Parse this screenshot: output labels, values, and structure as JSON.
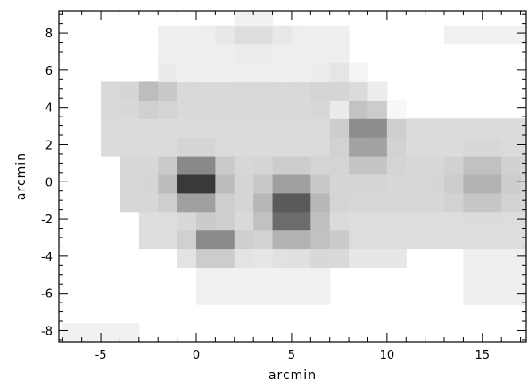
{
  "chart_data": {
    "type": "heatmap",
    "title": "",
    "xlabel": "arcmin",
    "ylabel": "arcmin",
    "xlim": [
      -7.2,
      17.3
    ],
    "ylim": [
      -8.6,
      9.2
    ],
    "x_ticks": [
      -5,
      0,
      5,
      10,
      15
    ],
    "y_ticks": [
      -8,
      -6,
      -4,
      -2,
      0,
      2,
      4,
      6,
      8
    ],
    "colormap": "grayscale (white = low, black = high)",
    "grid": false,
    "colors": {
      "low": "#ffffff",
      "high": "#141414",
      "frame": "#000000"
    },
    "intensity_peaks": [
      {
        "x": 0.0,
        "y": 0.0,
        "value": 1.0
      },
      {
        "x": 5.0,
        "y": -1.5,
        "value": 0.85
      },
      {
        "x": 1.0,
        "y": -3.2,
        "value": 0.6
      },
      {
        "x": 9.0,
        "y": 2.8,
        "value": 0.6
      },
      {
        "x": 15.0,
        "y": 0.0,
        "value": 0.35
      }
    ]
  }
}
